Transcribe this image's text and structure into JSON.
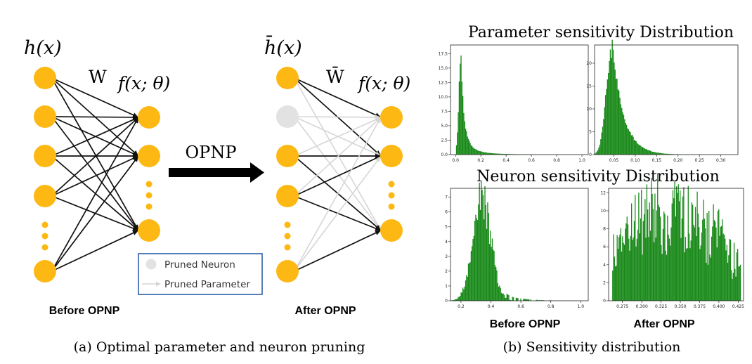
{
  "left_panel": {
    "input_label": "h(x)",
    "input_label_bar": "h̄(x)",
    "weight_label": "W",
    "weight_label_bar": "W̄",
    "output_label": "f(x; θ)",
    "arrow_label": "OPNP",
    "before_label": "Before OPNP",
    "after_label": "After OPNP",
    "legend": {
      "pruned_neuron": "Pruned Neuron",
      "pruned_parameter": "Pruned Parameter"
    },
    "caption": "(a) Optimal parameter and neuron pruning"
  },
  "right_panel": {
    "param_title": "Parameter sensitivity Distribution",
    "neuron_title": "Neuron sensitivity Distribution",
    "before_label": "Before OPNP",
    "after_label": "After OPNP",
    "caption": "(b)  Sensitivity distribution"
  },
  "colors": {
    "neuron": "#FDB813",
    "pruned_neuron": "#E2E2E2",
    "edge": "#111111",
    "pruned_edge": "#D6D6D6",
    "histogram": "#1A8A1A",
    "legend_border": "#2E5FA8"
  },
  "chart_data": [
    {
      "type": "bar",
      "name": "param-before",
      "xticks": [
        "0.0",
        "0.2",
        "0.4",
        "0.6",
        "0.8",
        "1.0"
      ],
      "yticks": [
        "0.0",
        "2.5",
        "5.0",
        "7.5",
        "10.0",
        "12.5",
        "15.0",
        "17.5"
      ],
      "xlim": [
        -0.04,
        1.05
      ],
      "ylim": [
        0,
        19
      ],
      "shape": {
        "kind": "skew",
        "mode": 0.045,
        "width": 0.07,
        "peak": 18.0
      }
    },
    {
      "type": "bar",
      "name": "param-after",
      "xticks": [
        "0.05",
        "0.10",
        "0.15",
        "0.20",
        "0.25",
        "0.30"
      ],
      "yticks": [
        "0",
        "5",
        "10",
        "15",
        "20"
      ],
      "xlim": [
        0.005,
        0.34
      ],
      "ylim": [
        0,
        24
      ],
      "shape": {
        "kind": "skew",
        "mode": 0.045,
        "width": 0.045,
        "peak": 22.5
      }
    },
    {
      "type": "bar",
      "name": "neuron-before",
      "xticks": [
        "0.2",
        "0.4",
        "0.6",
        "0.8",
        "1.0"
      ],
      "yticks": [
        "0",
        "1",
        "2",
        "3",
        "4",
        "5",
        "6",
        "7"
      ],
      "xlim": [
        0.13,
        1.05
      ],
      "ylim": [
        0,
        7.6
      ],
      "shape": {
        "kind": "normal",
        "mode": 0.34,
        "width": 0.06,
        "peak": 7.1
      }
    },
    {
      "type": "bar",
      "name": "neuron-after",
      "xticks": [
        "0.275",
        "0.300",
        "0.325",
        "0.350",
        "0.375",
        "0.400",
        "0.425"
      ],
      "yticks": [
        "0",
        "2",
        "4",
        "6",
        "8",
        "10",
        "12"
      ],
      "xlim": [
        0.257,
        0.432
      ],
      "ylim": [
        0,
        12.5
      ],
      "shape": {
        "kind": "noisy",
        "mode": 0.34,
        "width": 0.07,
        "peak": 10.5
      }
    }
  ]
}
